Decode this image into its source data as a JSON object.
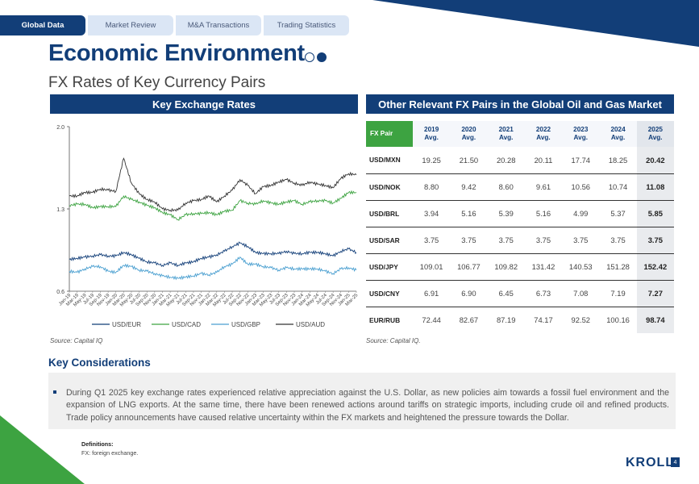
{
  "tabs": [
    {
      "label": "Global Data",
      "active": true
    },
    {
      "label": "Market Review",
      "active": false
    },
    {
      "label": "M&A Transactions",
      "active": false
    },
    {
      "label": "Trading Statistics",
      "active": false
    }
  ],
  "page": {
    "title": "Economic Environment",
    "subtitle": "FX Rates of Key Currency Pairs"
  },
  "left_section": {
    "title": "Key Exchange Rates",
    "source": "Source: Capital IQ"
  },
  "right_section": {
    "title": "Other Relevant FX Pairs in the Global Oil and Gas Market",
    "source": "Source: Capital IQ."
  },
  "colors": {
    "navy": "#123e78",
    "green": "#3da341",
    "light_blue": "#4a9fd0",
    "dark_grey": "#333333"
  },
  "chart_data": {
    "type": "line",
    "y_ticks": [
      "2.0",
      "1.3",
      "0.6"
    ],
    "ylim": [
      0.6,
      2.0
    ],
    "x_tick_labels": [
      "Jan-19",
      "Mar-19",
      "May-19",
      "Jul-19",
      "Sep-19",
      "Nov-19",
      "Jan-20",
      "Mar-20",
      "May-20",
      "Jul-20",
      "Sep-20",
      "Nov-20",
      "Jan-21",
      "Mar-21",
      "May-21",
      "Jul-21",
      "Sep-21",
      "Nov-21",
      "Jan-22",
      "Mar-22",
      "May-22",
      "Jul-22",
      "Sep-22",
      "Nov-22",
      "Jan-23",
      "Mar-23",
      "May-23",
      "Jul-23",
      "Sep-23",
      "Nov-23",
      "Jan-24",
      "Mar-24",
      "May-24",
      "Jul-24",
      "Sep-24",
      "Nov-24",
      "Jan-25",
      "Mar-25"
    ],
    "series": [
      {
        "name": "USD/EUR",
        "color": "#123e78",
        "values": [
          0.87,
          0.88,
          0.89,
          0.9,
          0.91,
          0.9,
          0.9,
          0.93,
          0.91,
          0.88,
          0.85,
          0.84,
          0.82,
          0.84,
          0.82,
          0.84,
          0.85,
          0.88,
          0.89,
          0.91,
          0.94,
          0.98,
          1.01,
          0.98,
          0.93,
          0.92,
          0.92,
          0.92,
          0.94,
          0.92,
          0.92,
          0.93,
          0.93,
          0.92,
          0.9,
          0.94,
          0.96,
          0.93
        ]
      },
      {
        "name": "USD/CAD",
        "color": "#3da341",
        "values": [
          1.33,
          1.34,
          1.34,
          1.31,
          1.32,
          1.32,
          1.32,
          1.41,
          1.38,
          1.36,
          1.33,
          1.31,
          1.27,
          1.25,
          1.21,
          1.25,
          1.26,
          1.26,
          1.27,
          1.25,
          1.28,
          1.29,
          1.37,
          1.35,
          1.34,
          1.37,
          1.35,
          1.34,
          1.36,
          1.37,
          1.34,
          1.36,
          1.37,
          1.37,
          1.35,
          1.39,
          1.44,
          1.44
        ]
      },
      {
        "name": "USD/GBP",
        "color": "#4a9fd0",
        "values": [
          0.77,
          0.76,
          0.79,
          0.81,
          0.81,
          0.77,
          0.76,
          0.82,
          0.81,
          0.78,
          0.77,
          0.75,
          0.73,
          0.72,
          0.71,
          0.72,
          0.73,
          0.75,
          0.74,
          0.76,
          0.81,
          0.83,
          0.89,
          0.83,
          0.83,
          0.81,
          0.8,
          0.78,
          0.8,
          0.79,
          0.79,
          0.79,
          0.79,
          0.77,
          0.75,
          0.79,
          0.8,
          0.78
        ]
      },
      {
        "name": "USD/AUD",
        "color": "#333333",
        "values": [
          1.41,
          1.41,
          1.44,
          1.44,
          1.47,
          1.46,
          1.45,
          1.73,
          1.52,
          1.43,
          1.38,
          1.36,
          1.3,
          1.29,
          1.29,
          1.35,
          1.37,
          1.38,
          1.41,
          1.36,
          1.41,
          1.46,
          1.55,
          1.5,
          1.43,
          1.49,
          1.5,
          1.53,
          1.55,
          1.52,
          1.5,
          1.53,
          1.51,
          1.5,
          1.48,
          1.56,
          1.6,
          1.59
        ]
      }
    ]
  },
  "fx_table": {
    "header_pair": "FX Pair",
    "years": [
      {
        "year": "2019",
        "label": "Avg."
      },
      {
        "year": "2020",
        "label": "Avg."
      },
      {
        "year": "2021",
        "label": "Avg."
      },
      {
        "year": "2022",
        "label": "Avg."
      },
      {
        "year": "2023",
        "label": "Avg."
      },
      {
        "year": "2024",
        "label": "Avg."
      },
      {
        "year": "2025",
        "label": "Avg."
      }
    ],
    "rows": [
      {
        "pair": "USD/MXN",
        "values": [
          "19.25",
          "21.50",
          "20.28",
          "20.11",
          "17.74",
          "18.25",
          "20.42"
        ]
      },
      {
        "pair": "USD/NOK",
        "values": [
          "8.80",
          "9.42",
          "8.60",
          "9.61",
          "10.56",
          "10.74",
          "11.08"
        ]
      },
      {
        "pair": "USD/BRL",
        "values": [
          "3.94",
          "5.16",
          "5.39",
          "5.16",
          "4.99",
          "5.37",
          "5.85"
        ]
      },
      {
        "pair": "USD/SAR",
        "values": [
          "3.75",
          "3.75",
          "3.75",
          "3.75",
          "3.75",
          "3.75",
          "3.75"
        ]
      },
      {
        "pair": "USD/JPY",
        "values": [
          "109.01",
          "106.77",
          "109.82",
          "131.42",
          "140.53",
          "151.28",
          "152.42"
        ]
      },
      {
        "pair": "USD/CNY",
        "values": [
          "6.91",
          "6.90",
          "6.45",
          "6.73",
          "7.08",
          "7.19",
          "7.27"
        ]
      },
      {
        "pair": "EUR/RUB",
        "values": [
          "72.44",
          "82.67",
          "87.19",
          "74.17",
          "92.52",
          "100.16",
          "98.74"
        ]
      }
    ]
  },
  "key_considerations": {
    "title": "Key Considerations",
    "text": "During Q1 2025 key exchange rates experienced relative appreciation against the U.S. Dollar, as new policies aim towards a fossil fuel environment and the expansion of LNG exports. At the same time, there have been renewed actions around tariffs on strategic imports, including crude oil and refined products. Trade policy announcements have caused relative uncertainty within the FX markets and heightened the pressure towards the Dollar."
  },
  "definitions": {
    "title": "Definitions:",
    "text": "FX: foreign exchange."
  },
  "footer": {
    "logo": "KROLL",
    "page_number": "4"
  }
}
